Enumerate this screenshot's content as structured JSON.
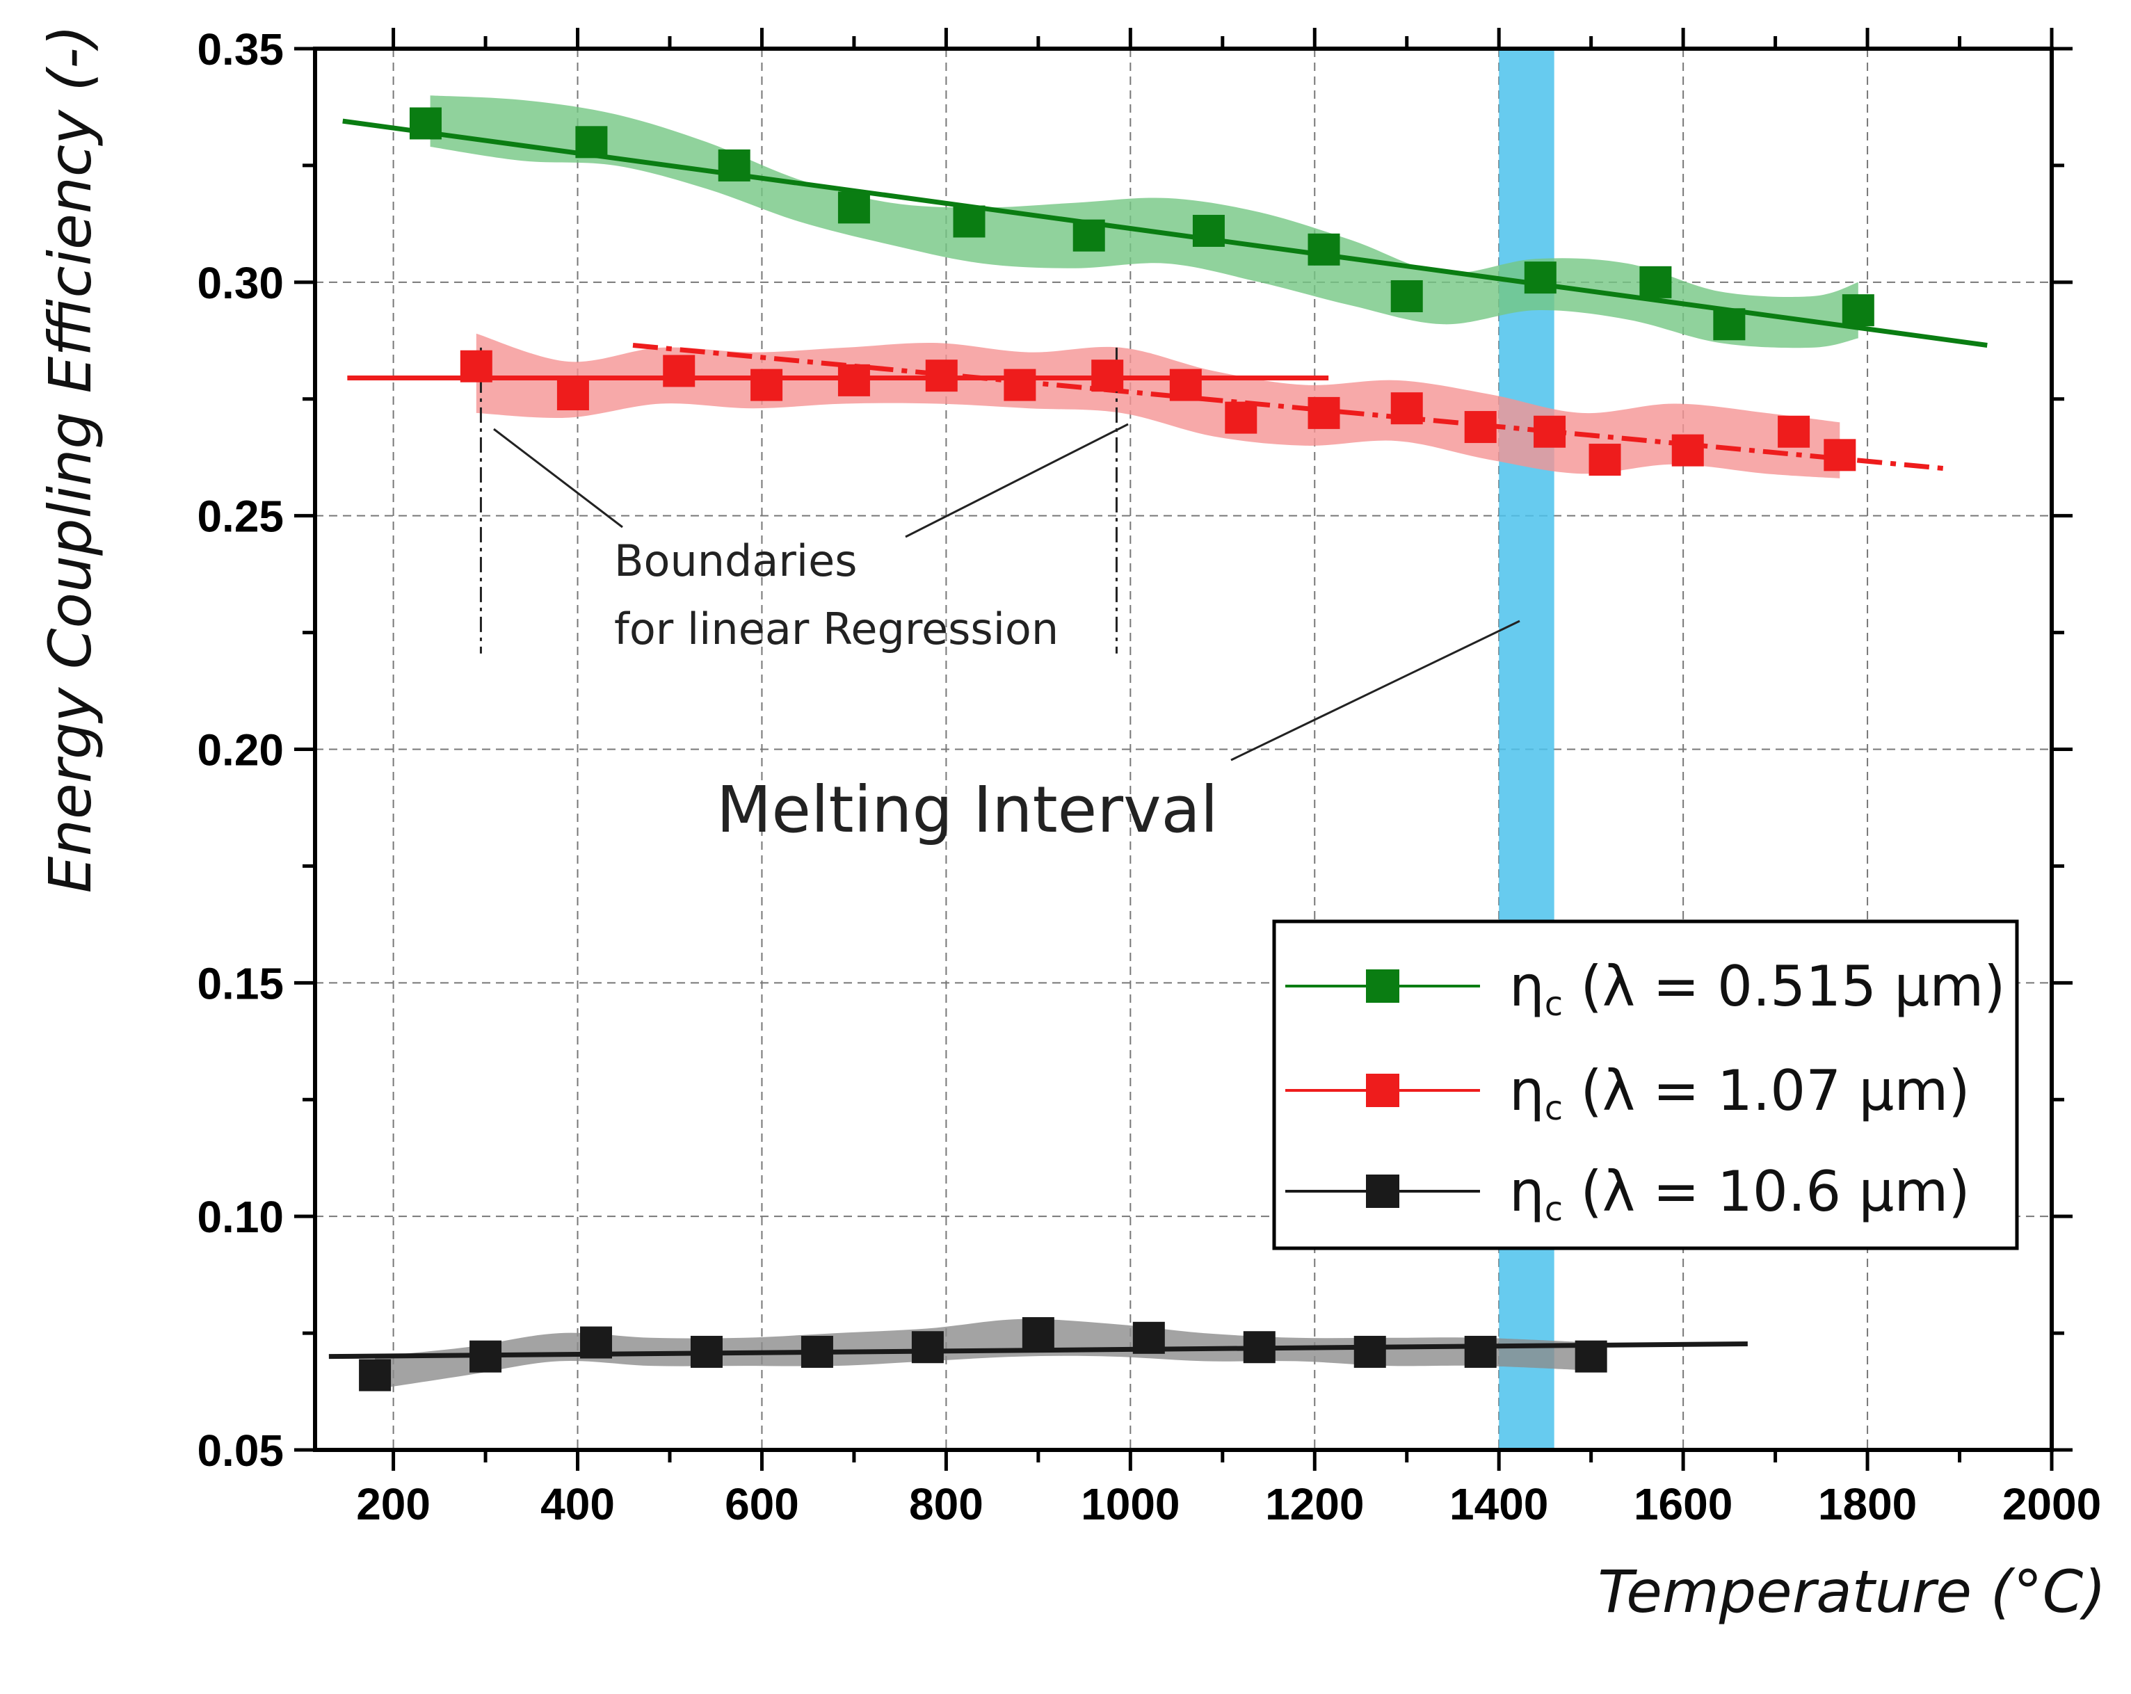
{
  "chart_data": {
    "type": "scatter",
    "xlabel": "Temperature (°C)",
    "ylabel": "Energy Coupling Efficiency (-)",
    "xlim": [
      115,
      2000
    ],
    "ylim": [
      0.05,
      0.35
    ],
    "xticks": [
      200,
      400,
      600,
      800,
      1000,
      1200,
      1400,
      1600,
      1800,
      2000
    ],
    "yticks": [
      0.05,
      0.1,
      0.15,
      0.2,
      0.25,
      0.3,
      0.35
    ],
    "xtick_labels": [
      "200",
      "400",
      "600",
      "800",
      "1000",
      "1200",
      "1400",
      "1600",
      "1800",
      "2000"
    ],
    "ytick_labels": [
      "0.05",
      "0.10",
      "0.15",
      "0.20",
      "0.25",
      "0.30",
      "0.35"
    ],
    "grid": true,
    "melting_interval": [
      1400,
      1460
    ],
    "regression_boundaries": [
      295,
      985
    ],
    "series": [
      {
        "name": "ηc (λ = 0.515 µm)",
        "legend_prefix": "η",
        "legend_sub": "c",
        "legend_suffix": " (λ = 0.515 µm)",
        "color": "#0a7d12",
        "band_color": "#74c783",
        "x": [
          235,
          415,
          570,
          700,
          825,
          955,
          1085,
          1210,
          1300,
          1445,
          1570,
          1650,
          1790
        ],
        "y": [
          0.334,
          0.33,
          0.325,
          0.316,
          0.313,
          0.31,
          0.311,
          0.307,
          0.297,
          0.301,
          0.3,
          0.291,
          0.294
        ],
        "band_x": [
          240,
          340,
          440,
          540,
          640,
          740,
          840,
          940,
          1040,
          1140,
          1240,
          1340,
          1440,
          1540,
          1640,
          1740,
          1790
        ],
        "band_lo": [
          0.329,
          0.326,
          0.325,
          0.32,
          0.313,
          0.308,
          0.304,
          0.303,
          0.304,
          0.3,
          0.295,
          0.291,
          0.294,
          0.292,
          0.287,
          0.286,
          0.288
        ],
        "band_hi": [
          0.34,
          0.339,
          0.336,
          0.33,
          0.322,
          0.317,
          0.316,
          0.317,
          0.318,
          0.315,
          0.309,
          0.302,
          0.305,
          0.304,
          0.298,
          0.297,
          0.3
        ],
        "fits": [
          {
            "x": [
              145,
              1930
            ],
            "y": [
              0.3345,
              0.2865
            ],
            "style": "solid"
          }
        ]
      },
      {
        "name": "ηc (λ = 1.07 µm)",
        "legend_prefix": "η",
        "legend_sub": "c",
        "legend_suffix": " (λ = 1.07 µm)",
        "color": "#ee1c1c",
        "band_color": "#f59393",
        "x": [
          290,
          395,
          510,
          605,
          700,
          795,
          880,
          975,
          1060,
          1120,
          1210,
          1300,
          1380,
          1455,
          1515,
          1605,
          1720,
          1770
        ],
        "y": [
          0.282,
          0.276,
          0.281,
          0.278,
          0.279,
          0.28,
          0.278,
          0.28,
          0.278,
          0.271,
          0.272,
          0.273,
          0.269,
          0.268,
          0.262,
          0.264,
          0.268,
          0.263
        ],
        "band_x": [
          290,
          390,
          490,
          590,
          690,
          790,
          890,
          990,
          1090,
          1190,
          1290,
          1390,
          1490,
          1590,
          1690,
          1770
        ],
        "band_lo": [
          0.272,
          0.271,
          0.274,
          0.273,
          0.274,
          0.274,
          0.273,
          0.272,
          0.267,
          0.265,
          0.266,
          0.262,
          0.259,
          0.261,
          0.259,
          0.258
        ],
        "band_hi": [
          0.289,
          0.283,
          0.286,
          0.285,
          0.286,
          0.287,
          0.285,
          0.286,
          0.281,
          0.278,
          0.279,
          0.276,
          0.272,
          0.274,
          0.272,
          0.27
        ],
        "fits": [
          {
            "x": [
              150,
              1215
            ],
            "y": [
              0.2795,
              0.2795
            ],
            "style": "solid"
          },
          {
            "x": [
              460,
              1890
            ],
            "y": [
              0.2865,
              0.26
            ],
            "style": "dashdot"
          }
        ]
      },
      {
        "name": "ηc (λ = 10.6 µm)",
        "legend_prefix": "η",
        "legend_sub": "c",
        "legend_suffix": " (λ = 10.6 µm)",
        "color": "#1a1a1a",
        "band_color": "#8c8c8c",
        "x": [
          180,
          300,
          420,
          540,
          660,
          780,
          900,
          1020,
          1140,
          1260,
          1380,
          1500
        ],
        "y": [
          0.066,
          0.07,
          0.073,
          0.071,
          0.071,
          0.072,
          0.075,
          0.074,
          0.072,
          0.071,
          0.071,
          0.07
        ],
        "band_x": [
          180,
          280,
          380,
          480,
          580,
          680,
          780,
          880,
          980,
          1080,
          1180,
          1280,
          1380,
          1500
        ],
        "band_lo": [
          0.063,
          0.066,
          0.069,
          0.068,
          0.068,
          0.068,
          0.069,
          0.07,
          0.07,
          0.069,
          0.069,
          0.068,
          0.068,
          0.067
        ],
        "band_hi": [
          0.07,
          0.072,
          0.075,
          0.074,
          0.074,
          0.075,
          0.076,
          0.078,
          0.077,
          0.075,
          0.074,
          0.074,
          0.074,
          0.073
        ],
        "fits": [
          {
            "x": [
              130,
              1670
            ],
            "y": [
              0.07,
              0.0727
            ],
            "style": "solid"
          }
        ]
      }
    ],
    "annotations": {
      "boundaries_line1": "Boundaries",
      "boundaries_line2": "for linear Regression",
      "melting": "Melting Interval"
    }
  }
}
